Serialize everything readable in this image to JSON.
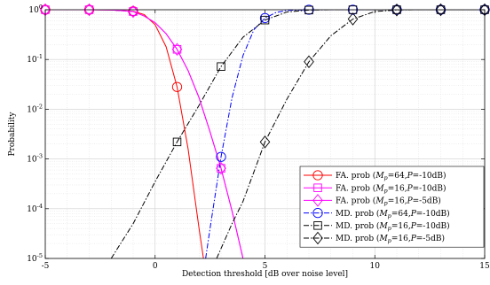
{
  "chart_data": {
    "type": "line",
    "xlabel": "Detection threshold [dB over noise level]",
    "ylabel": "Probability",
    "xlim": [
      -5,
      15
    ],
    "ylim": [
      1e-05,
      1
    ],
    "yscale": "log",
    "grid": true,
    "legend_position": "bottom-right",
    "x_ticks": [
      -5,
      0,
      5,
      10,
      15
    ],
    "x_tick_labels": [
      "-5",
      "0",
      "5",
      "10",
      "15"
    ],
    "y_ticks": [
      1e-05,
      0.0001,
      0.001,
      0.01,
      0.1,
      1
    ],
    "y_tick_labels": [
      {
        "base": "10",
        "exp": "-5"
      },
      {
        "base": "10",
        "exp": "-4"
      },
      {
        "base": "10",
        "exp": "-3"
      },
      {
        "base": "10",
        "exp": "-2"
      },
      {
        "base": "10",
        "exp": "-1"
      },
      {
        "base": "10",
        "exp": "0"
      }
    ],
    "series": [
      {
        "label": {
          "pre": "FA. prob (",
          "m": "M",
          "sub": "p",
          "mid": "=64,",
          "p": "P",
          "post": "=-10dB)"
        },
        "color": "#ff0000",
        "dash": "",
        "marker": "circle",
        "x": [
          -5,
          -4,
          -3,
          -2,
          -1,
          -0.5,
          0,
          0.5,
          1,
          1.5,
          2,
          2.2
        ],
        "y": [
          1,
          1,
          1,
          0.99,
          0.93,
          0.8,
          0.5,
          0.18,
          0.028,
          0.0016,
          4e-05,
          1e-05
        ],
        "marker_x": [
          -5,
          -3,
          -1,
          1
        ]
      },
      {
        "label": {
          "pre": "FA. prob (",
          "m": "M",
          "sub": "p",
          "mid": "=16,",
          "p": "P",
          "post": "=-10dB)"
        },
        "color": "#ff00ff",
        "dash": "",
        "marker": "square",
        "x": [
          -5,
          -4,
          -3,
          -2,
          -1,
          -0.5,
          0,
          0.5,
          1,
          1.5,
          2,
          2.5,
          3,
          3.5,
          4
        ],
        "y": [
          1,
          1,
          1,
          0.99,
          0.92,
          0.75,
          0.55,
          0.33,
          0.16,
          0.06,
          0.017,
          0.0035,
          0.00065,
          9e-05,
          1e-05
        ],
        "marker_x": [
          -5,
          -3,
          -1,
          1,
          3
        ]
      },
      {
        "label": {
          "pre": "FA. prob (",
          "m": "M",
          "sub": "p",
          "mid": "=16,",
          "p": "P",
          "post": "=-5dB)"
        },
        "color": "#ff00ff",
        "dash": "",
        "marker": "diamond",
        "x": [
          -5,
          -4,
          -3,
          -2,
          -1,
          -0.5,
          0,
          0.5,
          1,
          1.5,
          2,
          2.5,
          3,
          3.5,
          4
        ],
        "y": [
          1,
          1,
          1,
          0.99,
          0.92,
          0.75,
          0.55,
          0.33,
          0.16,
          0.06,
          0.017,
          0.0035,
          0.00065,
          9e-05,
          1e-05
        ],
        "marker_x": [
          -5,
          -3,
          -1,
          1,
          3
        ]
      },
      {
        "label": {
          "pre": "MD. prob (",
          "m": "M",
          "sub": "p",
          "mid": "=64,",
          "p": "P",
          "post": "=-10dB)"
        },
        "color": "#0000ff",
        "dash": "6 2 1.5 2",
        "marker": "circle",
        "x": [
          2.3,
          2.5,
          3,
          3.5,
          4,
          4.5,
          5,
          5.5,
          6,
          7,
          15
        ],
        "y": [
          1e-05,
          4e-05,
          0.0011,
          0.017,
          0.12,
          0.4,
          0.68,
          0.88,
          0.97,
          1,
          1
        ],
        "marker_x": [
          3,
          5,
          7,
          9,
          11,
          13,
          15
        ]
      },
      {
        "label": {
          "pre": "MD. prob (",
          "m": "M",
          "sub": "p",
          "mid": "=16,",
          "p": "P",
          "post": "=-10dB)"
        },
        "color": "#000000",
        "dash": "6 2 1.5 2",
        "marker": "square",
        "x": [
          -2,
          -1,
          0,
          1,
          2,
          3,
          4,
          5,
          6,
          7,
          8,
          9,
          15
        ],
        "y": [
          1e-05,
          5e-05,
          0.00035,
          0.0022,
          0.012,
          0.072,
          0.28,
          0.62,
          0.9,
          0.985,
          1,
          1,
          1
        ],
        "marker_x": [
          1,
          3,
          5,
          7,
          9,
          11,
          13,
          15
        ]
      },
      {
        "label": {
          "pre": "MD. prob (",
          "m": "M",
          "sub": "p",
          "mid": "=16,",
          "p": "P",
          "post": "=-5dB)"
        },
        "color": "#000000",
        "dash": "6 2 1.5 2",
        "marker": "diamond",
        "x": [
          2.8,
          3.5,
          4,
          5,
          6,
          7,
          8,
          9,
          10,
          11,
          12,
          13,
          15
        ],
        "y": [
          1e-05,
          5e-05,
          0.00014,
          0.0022,
          0.016,
          0.09,
          0.3,
          0.65,
          0.92,
          0.99,
          1,
          1,
          1
        ],
        "marker_x": [
          5,
          7,
          9,
          11,
          13,
          15
        ]
      }
    ]
  }
}
